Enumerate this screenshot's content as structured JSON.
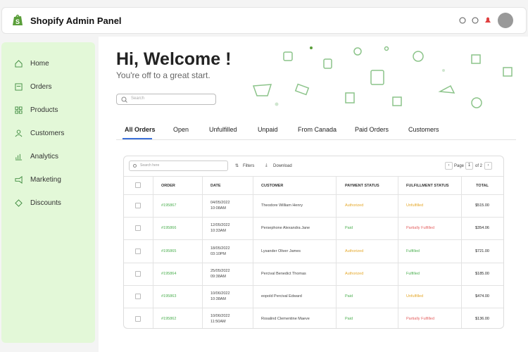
{
  "header": {
    "title": "Shopify Admin Panel"
  },
  "sidebar": {
    "items": [
      "Home",
      "Orders",
      "Products",
      "Customers",
      "Analytics",
      "Marketing",
      "Discounts"
    ]
  },
  "welcome": {
    "title": "Hi, Welcome !",
    "subtitle": "You're off to a great start."
  },
  "search": {
    "placeholder": "Search"
  },
  "tabs": {
    "items": [
      "All Orders",
      "Open",
      "Unfulfilled",
      "Unpaid",
      "From Canada",
      "Paid Orders",
      "Customers"
    ]
  },
  "toolbar": {
    "search_placeholder": "Search here",
    "filters": "Filters",
    "download": "Download",
    "page_label": "Page",
    "page": 1,
    "page_of": "of 2"
  },
  "table": {
    "columns": [
      "ORDER",
      "DATE",
      "CUSTOMER",
      "PAYMENT STATUS",
      "FULFILLMENT STATUS",
      "TOTAL"
    ],
    "rows": [
      {
        "order": "#195867",
        "date": "04/05/2022",
        "time": "10:08AM",
        "customer": "Theodore William Henry",
        "payment": "Authorized",
        "payment_color": "#e5a82a",
        "fulfillment": "Unfulfilled",
        "fulfillment_color": "#e5a82a",
        "total": "$515.00"
      },
      {
        "order": "#195866",
        "date": "12/05/2022",
        "time": "10:33AM",
        "customer": "Persephone Alexandra Jane",
        "payment": "Paid",
        "payment_color": "#4caf50",
        "fulfillment": "Partially Fulfilled",
        "fulfillment_color": "#e46363",
        "total": "$354.06"
      },
      {
        "order": "#195865",
        "date": "18/05/2022",
        "time": "03:10PM",
        "customer": "Lysander Oliver James",
        "payment": "Authorized",
        "payment_color": "#e5a82a",
        "fulfillment": "Fulfilled",
        "fulfillment_color": "#4caf50",
        "total": "$721.00"
      },
      {
        "order": "#195864",
        "date": "25/05/2022",
        "time": "09:38AM",
        "customer": "Percival Benedict Thomas",
        "payment": "Authorized",
        "payment_color": "#e5a82a",
        "fulfillment": "Fulfilled",
        "fulfillment_color": "#4caf50",
        "total": "$185.00"
      },
      {
        "order": "#195863",
        "date": "10/06/2022",
        "time": "10:38AM",
        "customer": "eopold Percival Edward",
        "payment": "Paid",
        "payment_color": "#4caf50",
        "fulfillment": "Unfulfilled",
        "fulfillment_color": "#e5a82a",
        "total": "$474.00"
      },
      {
        "order": "#195862",
        "date": "10/06/2022",
        "time": "11:50AM",
        "customer": "Rosalind Clementine Maeve",
        "payment": "Paid",
        "payment_color": "#4caf50",
        "fulfillment": "Partially Fulfilled",
        "fulfillment_color": "#e46363",
        "total": "$136.00"
      }
    ]
  }
}
